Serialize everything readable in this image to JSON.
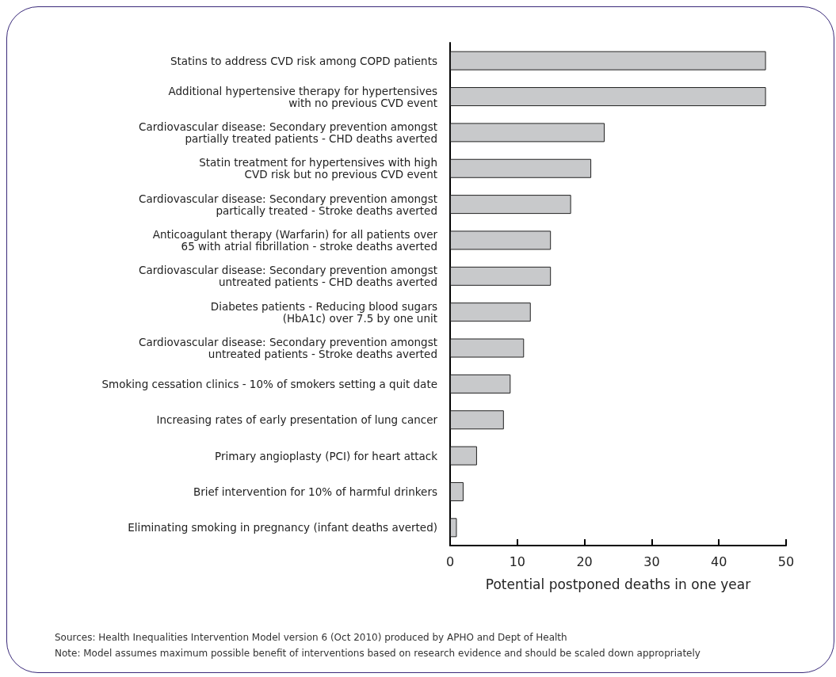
{
  "chart_data": {
    "type": "bar",
    "orientation": "horizontal",
    "categories": [
      "Statins to address CVD risk among COPD patients",
      "Additional hypertensive therapy for hypertensives\nwith no previous CVD event",
      "Cardiovascular disease: Secondary prevention amongst\npartially treated patients - CHD deaths averted",
      "Statin treatment for hypertensives with high\nCVD risk but no previous CVD event",
      "Cardiovascular disease: Secondary prevention amongst\npartically treated - Stroke deaths averted",
      "Anticoagulant therapy (Warfarin) for all patients over\n65 with atrial fibrillation - stroke deaths averted",
      "Cardiovascular disease: Secondary prevention amongst\nuntreated patients - CHD deaths averted",
      "Diabetes patients - Reducing blood sugars\n(HbA1c) over 7.5 by one unit",
      "Cardiovascular disease: Secondary prevention amongst\nuntreated patients - Stroke deaths averted",
      "Smoking cessation clinics - 10% of smokers setting a quit date",
      "Increasing rates of early presentation of lung cancer",
      "Primary angioplasty (PCI) for heart attack",
      "Brief intervention for 10% of harmful drinkers",
      "Eliminating smoking in pregnancy (infant deaths averted)"
    ],
    "values": [
      47,
      47,
      23,
      21,
      18,
      15,
      15,
      12,
      11,
      9,
      8,
      4,
      2,
      1
    ],
    "color": "#c8c9cb",
    "xlabel": "Potential postponed deaths in one year",
    "xlim": [
      0,
      50
    ],
    "xticks": [
      0,
      10,
      20,
      30,
      40,
      50
    ],
    "grid": false,
    "annotations": [
      "Sources: Health Inequalities Intervention Model version 6 (Oct 2010) produced by APHO and Dept of Health",
      "Note: Model assumes maximum possible benefit of interventions based on research evidence and should be scaled down appropriately"
    ]
  }
}
